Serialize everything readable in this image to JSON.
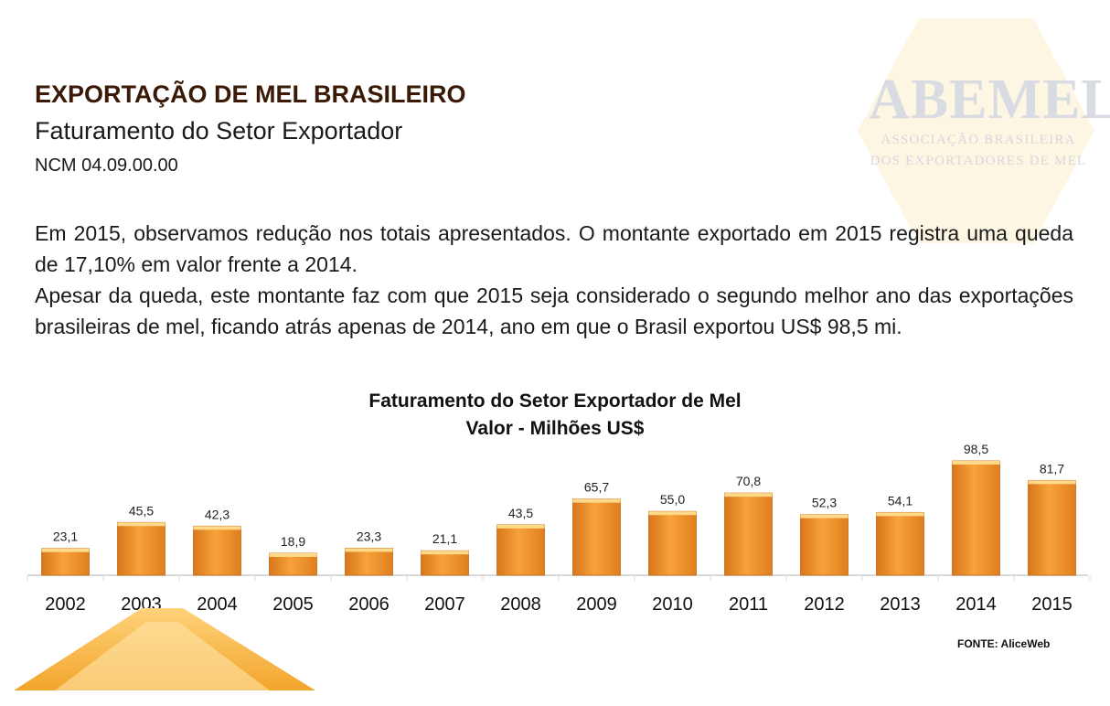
{
  "header": {
    "title": "EXPORTAÇÃO DE MEL BRASILEIRO",
    "subtitle": "Faturamento do Setor Exportador",
    "ncm": "NCM 04.09.00.00"
  },
  "logo": {
    "name": "ABEMEL",
    "line1": "ASSOCIAÇÃO BRASILEIRA",
    "line2": "DOS EXPORTADORES DE MEL"
  },
  "body": {
    "paragraph1": "Em 2015, observamos redução nos totais apresentados. O montante exportado em 2015 registra uma queda de 17,10% em valor frente a 2014.",
    "paragraph2": "Apesar da queda, este montante faz com que 2015 seja considerado o segundo melhor ano das exportações brasileiras de mel, ficando atrás apenas de 2014, ano em que o Brasil exportou US$ 98,5 mi."
  },
  "chart_data": {
    "type": "bar",
    "title": "Faturamento do Setor Exportador de Mel",
    "subtitle": "Valor - Milhões US$",
    "categories": [
      "2002",
      "2003",
      "2004",
      "2005",
      "2006",
      "2007",
      "2008",
      "2009",
      "2010",
      "2011",
      "2012",
      "2013",
      "2014",
      "2015"
    ],
    "values": [
      23.1,
      45.5,
      42.3,
      18.9,
      23.3,
      21.1,
      43.5,
      65.7,
      55.0,
      70.8,
      52.3,
      54.1,
      98.5,
      81.7
    ],
    "labels": [
      "23,1",
      "45,5",
      "42,3",
      "18,9",
      "23,3",
      "21,1",
      "43,5",
      "65,7",
      "55,0",
      "70,8",
      "52,3",
      "54,1",
      "98,5",
      "81,7"
    ],
    "ylim": [
      0,
      98.5
    ],
    "bar_color": "#f0912a",
    "grid": false,
    "source": "FONTE: AliceWeb"
  }
}
